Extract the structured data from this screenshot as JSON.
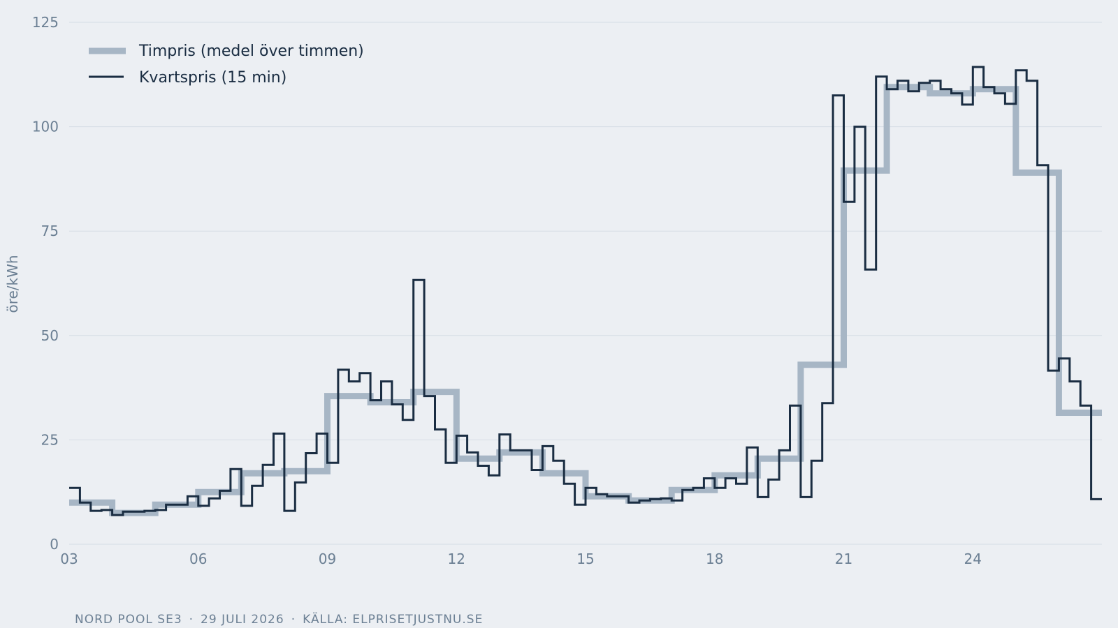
{
  "footer": {
    "source_market": "NORD POOL SE3",
    "date": "29 JULI 2026",
    "source": "KÄLLA: ELPRISETJUSTNU.SE",
    "separator": "·"
  },
  "colors": {
    "background": "#eceff3",
    "grid": "#d5dde5",
    "axis_text": "#6b7f93",
    "hourly": "#a7b6c5",
    "quarter": "#1a2d42",
    "legend_text": "#1a2d42"
  },
  "chart_data": {
    "type": "line",
    "ylabel": "öre/kWh",
    "xlabel": "",
    "ylim": [
      0,
      125
    ],
    "xlim": [
      3,
      27
    ],
    "yticks": [
      0,
      25,
      50,
      75,
      100,
      125
    ],
    "xticks": [
      3,
      6,
      9,
      12,
      15,
      18,
      21,
      24
    ],
    "xtick_labels": [
      "03",
      "06",
      "09",
      "12",
      "15",
      "18",
      "21",
      "24"
    ],
    "grid": "horizontal",
    "legend_position": "top-left",
    "step": true,
    "series": [
      {
        "name": "Timpris (medel över timmen)",
        "interval_hours": 1,
        "x_start": 3,
        "values": [
          10.0,
          7.5,
          9.5,
          12.5,
          17.0,
          17.5,
          35.5,
          34.0,
          36.5,
          20.5,
          22.0,
          17.0,
          11.5,
          10.5,
          13.0,
          16.5,
          20.5,
          43.0,
          89.5,
          109.5,
          108.0,
          109.0,
          89.0,
          31.5
        ]
      },
      {
        "name": "Kvartspris (15 min)",
        "interval_hours": 0.25,
        "x_start": 3,
        "values": [
          13.5,
          10.0,
          8.0,
          8.2,
          7.0,
          7.8,
          7.8,
          8.0,
          8.2,
          9.5,
          9.5,
          11.5,
          9.2,
          11.0,
          12.8,
          18.0,
          9.2,
          14.0,
          19.0,
          26.5,
          8.0,
          14.8,
          21.8,
          26.5,
          19.5,
          41.8,
          39.0,
          41.0,
          34.5,
          39.0,
          33.5,
          29.8,
          63.3,
          35.5,
          27.5,
          19.5,
          26.0,
          22.0,
          18.8,
          16.5,
          26.3,
          22.5,
          22.5,
          17.8,
          23.5,
          20.0,
          14.5,
          9.5,
          13.5,
          12.0,
          11.5,
          11.5,
          10.0,
          10.5,
          10.8,
          11.0,
          10.5,
          13.0,
          13.5,
          15.8,
          13.5,
          15.8,
          14.5,
          23.2,
          11.3,
          15.5,
          22.5,
          33.2,
          11.3,
          20.0,
          33.8,
          107.5,
          82.0,
          100.0,
          65.8,
          112.0,
          109.0,
          111.0,
          108.5,
          110.5,
          111.0,
          109.0,
          108.0,
          105.3,
          114.3,
          109.5,
          108.0,
          105.5,
          113.5,
          111.0,
          90.8,
          41.6,
          44.5,
          39.0,
          33.2,
          10.8
        ]
      }
    ]
  }
}
